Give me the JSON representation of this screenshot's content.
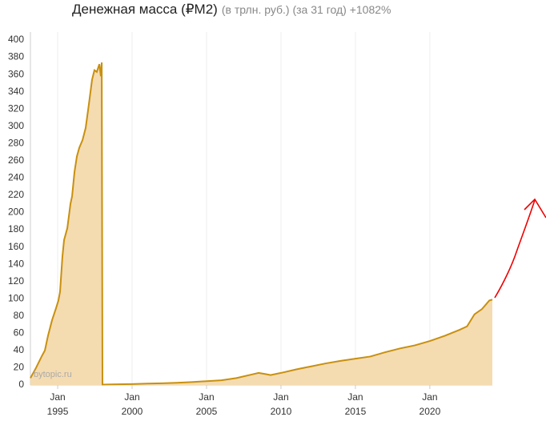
{
  "chart_data": {
    "type": "area",
    "title": "Денежная масса (₽M2)",
    "subtitle": "(в трлн. руб.) (за 31 год) +1082%",
    "watermark": "bytopic.ru",
    "x": [
      1993.17,
      1993.55,
      1993.92,
      1994.14,
      1994.35,
      1994.62,
      1994.89,
      1995.05,
      1995.16,
      1995.32,
      1995.43,
      1995.65,
      1995.86,
      1995.97,
      1996.13,
      1996.29,
      1996.45,
      1996.67,
      1996.88,
      1997.1,
      1997.31,
      1997.47,
      1997.63,
      1997.8,
      1997.9,
      1997.96,
      1998.01,
      1999,
      2000,
      2001,
      2002,
      2003,
      2004,
      2005,
      2006,
      2007,
      2008,
      2008.5,
      2009,
      2009.3,
      2010,
      2011,
      2012,
      2013,
      2014,
      2015,
      2016,
      2017,
      2018,
      2019,
      2020,
      2021,
      2022,
      2022.5,
      2023,
      2023.5,
      2024,
      2024.2
    ],
    "values": [
      8,
      20,
      33,
      40,
      57,
      75,
      89,
      98,
      108,
      149,
      168,
      182,
      210,
      219,
      247,
      265,
      275,
      284,
      298,
      326,
      354,
      365,
      363,
      372,
      358,
      374,
      0.5,
      0.8,
      1.1,
      1.6,
      2,
      2.6,
      3.4,
      4.4,
      5.5,
      8,
      12,
      14,
      12.5,
      11.5,
      14,
      18,
      21.5,
      25,
      28,
      30.5,
      33,
      38,
      42.4,
      46,
      51,
      57,
      64,
      68,
      82,
      88,
      98,
      99
    ],
    "color": "#c8900f",
    "fill": "#f5dbb0",
    "xlim": [
      1993.17,
      2024.2
    ],
    "xticks": [
      {
        "value": 1995,
        "label": "Jan 1995"
      },
      {
        "value": 2000,
        "label": "Jan 2000"
      },
      {
        "value": 2005,
        "label": "Jan 2005"
      },
      {
        "value": 2010,
        "label": "Jan 2010"
      },
      {
        "value": 2015,
        "label": "Jan 2015"
      },
      {
        "value": 2020,
        "label": "Jan 2020"
      }
    ],
    "ylim": [
      0,
      400
    ],
    "yticks": [
      0,
      20,
      40,
      60,
      80,
      100,
      120,
      140,
      160,
      180,
      200,
      220,
      240,
      260,
      280,
      300,
      320,
      340,
      360,
      380,
      400
    ],
    "grid": true
  }
}
